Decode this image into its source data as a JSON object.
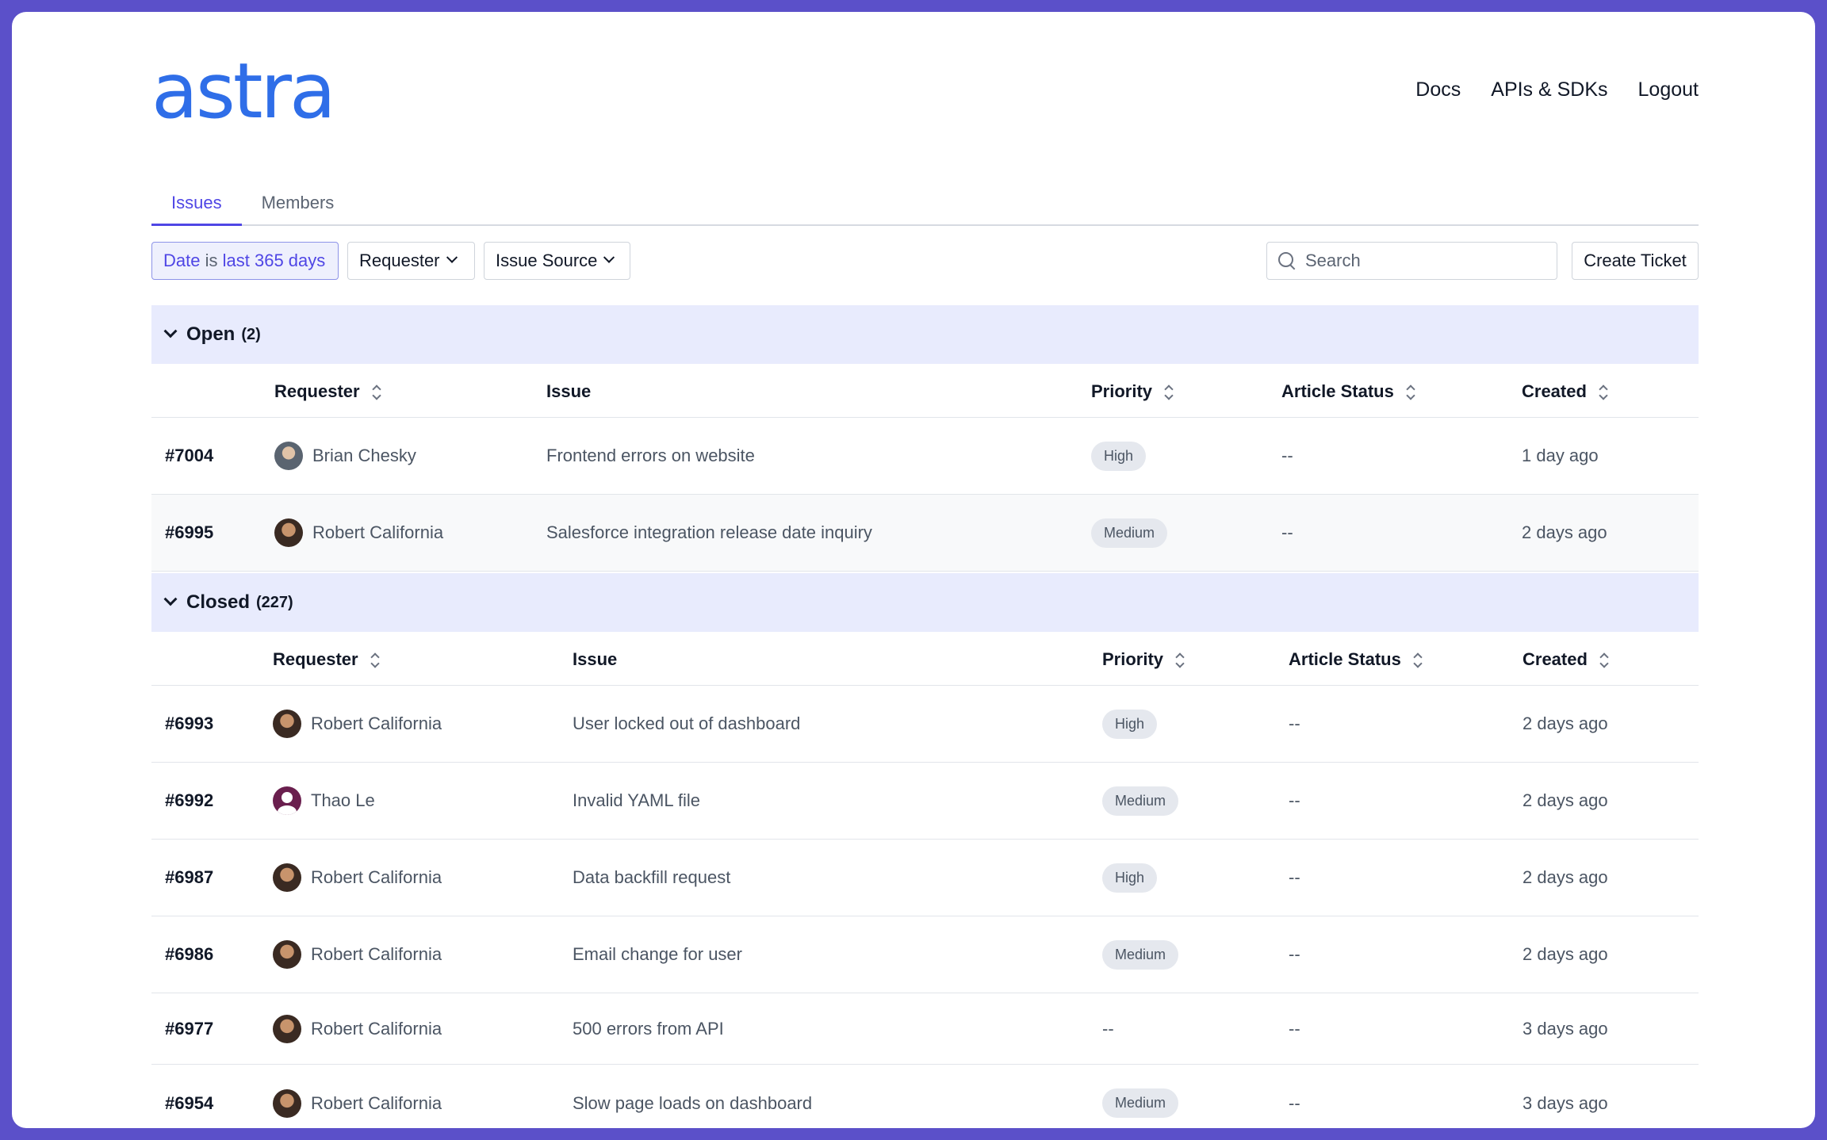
{
  "brand": {
    "logo_text": "astra",
    "logo_color": "#2f6ee8"
  },
  "topnav": {
    "docs": "Docs",
    "apis": "APIs & SDKs",
    "logout": "Logout"
  },
  "tabs": [
    {
      "label": "Issues",
      "active": true
    },
    {
      "label": "Members",
      "active": false
    }
  ],
  "filters": {
    "date_prefix": "Date",
    "date_is": "is",
    "date_value": "last 365 days",
    "requester": "Requester",
    "issue_source": "Issue Source",
    "search_placeholder": "Search",
    "create_ticket": "Create Ticket"
  },
  "columns": {
    "requester": "Requester",
    "issue": "Issue",
    "priority": "Priority",
    "article_status": "Article Status",
    "created": "Created"
  },
  "groups": {
    "open": {
      "title": "Open",
      "count": "(2)",
      "rows": [
        {
          "id": "#7004",
          "requester": "Brian Chesky",
          "avatar": "bc",
          "issue": "Frontend errors on website",
          "priority": "High",
          "article_status": "--",
          "created": "1 day ago"
        },
        {
          "id": "#6995",
          "requester": "Robert California",
          "avatar": "rc",
          "issue": "Salesforce integration release date inquiry",
          "priority": "Medium",
          "article_status": "--",
          "created": "2 days ago"
        }
      ]
    },
    "closed": {
      "title": "Closed",
      "count": "(227)",
      "rows": [
        {
          "id": "#6993",
          "requester": "Robert California",
          "avatar": "rc",
          "issue": "User locked out of dashboard",
          "priority": "High",
          "article_status": "--",
          "created": "2 days ago"
        },
        {
          "id": "#6992",
          "requester": "Thao Le",
          "avatar": "tl",
          "issue": "Invalid YAML file",
          "priority": "Medium",
          "article_status": "--",
          "created": "2 days ago"
        },
        {
          "id": "#6987",
          "requester": "Robert California",
          "avatar": "rc",
          "issue": "Data backfill request",
          "priority": "High",
          "article_status": "--",
          "created": "2 days ago"
        },
        {
          "id": "#6986",
          "requester": "Robert California",
          "avatar": "rc",
          "issue": "Email change for user",
          "priority": "Medium",
          "article_status": "--",
          "created": "2 days ago"
        },
        {
          "id": "#6977",
          "requester": "Robert California",
          "avatar": "rc",
          "issue": "500 errors from API",
          "priority": "--",
          "article_status": "--",
          "created": "3 days ago"
        },
        {
          "id": "#6954",
          "requester": "Robert California",
          "avatar": "rc",
          "issue": "Slow page loads on dashboard",
          "priority": "Medium",
          "article_status": "--",
          "created": "3 days ago"
        }
      ]
    }
  },
  "colors": {
    "accent": "#4f46e5",
    "group_bg": "#e8ebfd",
    "frame": "#5b50c9"
  }
}
